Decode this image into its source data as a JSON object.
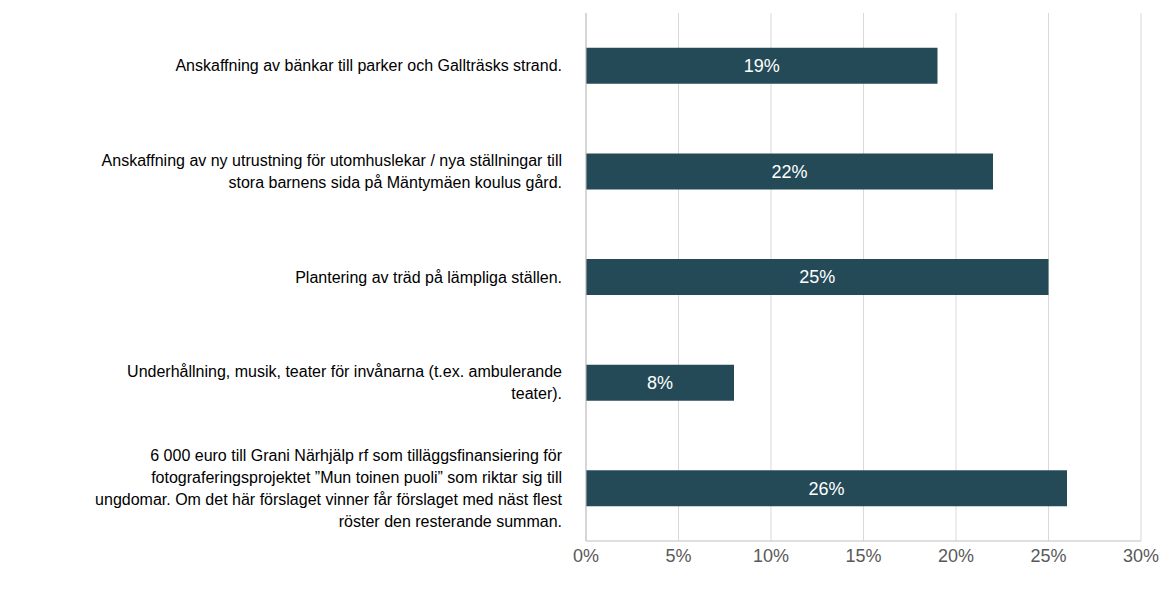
{
  "chart_data": {
    "type": "bar",
    "orientation": "horizontal",
    "categories": [
      "Anskaffning av bänkar till parker och Gallträsks strand.",
      "Anskaffning av ny utrustning för utomhuslekar / nya ställningar till stora barnens sida på Mäntymäen koulus gård.",
      "Plantering av träd på lämpliga ställen.",
      "Underhållning, musik, teater för invånarna (t.ex. ambulerande teater).",
      "6 000 euro till Grani Närhjälp rf som tilläggsfinansiering för fotograferingsprojektet ”Mun toinen puoli” som riktar sig till ungdomar. Om det här förslaget vinner får förslaget med näst flest röster den resterande summan."
    ],
    "values": [
      19,
      22,
      25,
      8,
      26
    ],
    "value_labels": [
      "19%",
      "22%",
      "25%",
      "8%",
      "26%"
    ],
    "color": "#244a57",
    "xlim": [
      0,
      30
    ],
    "xticks": [
      {
        "value": 0,
        "label": "0%"
      },
      {
        "value": 5,
        "label": "5%"
      },
      {
        "value": 10,
        "label": "10%"
      },
      {
        "value": 15,
        "label": "15%"
      },
      {
        "value": 20,
        "label": "20%"
      },
      {
        "value": 25,
        "label": "25%"
      },
      {
        "value": 30,
        "label": "30%"
      }
    ],
    "grid": true,
    "data_labels": true
  }
}
